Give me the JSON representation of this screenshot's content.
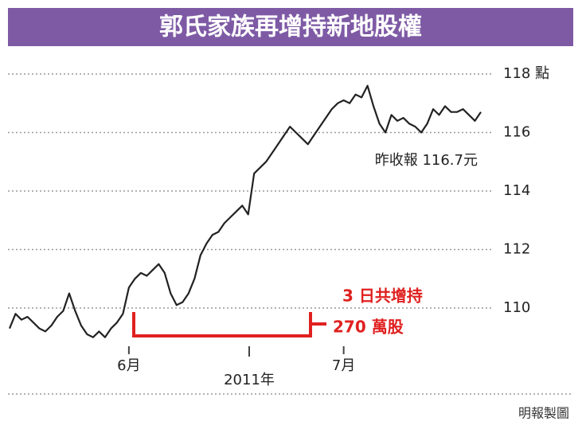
{
  "chart_data": {
    "type": "line",
    "title": "郭氏家族再增持新地股權",
    "categories": [
      null,
      null,
      null,
      null,
      null,
      null,
      null,
      null,
      null,
      null,
      null,
      null,
      null,
      null,
      null,
      null,
      null,
      null,
      null,
      null,
      "6月",
      null,
      null,
      null,
      null,
      null,
      null,
      null,
      null,
      null,
      null,
      null,
      null,
      null,
      null,
      null,
      null,
      null,
      null,
      null,
      null,
      null,
      null,
      null,
      null,
      null,
      null,
      null,
      null,
      null,
      null,
      null,
      null,
      null,
      null,
      null,
      "7月",
      null,
      null,
      null,
      null,
      null,
      null,
      null,
      null,
      null,
      null,
      null,
      null,
      null,
      null,
      null,
      null,
      null,
      null,
      null,
      null,
      null,
      null,
      null
    ],
    "series": [
      {
        "name": null,
        "color": "#222222",
        "values": [
          109.3,
          109.8,
          109.6,
          109.7,
          109.5,
          109.3,
          109.2,
          109.4,
          109.7,
          109.9,
          110.5,
          109.9,
          109.4,
          109.1,
          109.0,
          109.2,
          109.0,
          109.3,
          109.5,
          109.8,
          110.7,
          111.0,
          111.2,
          111.1,
          111.3,
          111.5,
          111.2,
          110.5,
          110.1,
          110.2,
          110.5,
          111.0,
          111.8,
          112.2,
          112.5,
          112.6,
          112.9,
          113.1,
          113.3,
          113.5,
          113.2,
          114.6,
          114.8,
          115.0,
          115.3,
          115.6,
          115.9,
          116.2,
          116.0,
          115.8,
          115.6,
          115.9,
          116.2,
          116.5,
          116.8,
          117.0,
          117.1,
          117.0,
          117.3,
          117.2,
          117.6,
          116.9,
          116.3,
          116.0,
          116.6,
          116.4,
          116.5,
          116.3,
          116.2,
          116.0,
          116.3,
          116.8,
          116.6,
          116.9,
          116.7,
          116.7,
          116.8,
          116.6,
          116.4,
          116.7
        ]
      }
    ],
    "ylim": [
      107,
      118.5
    ],
    "yticks": [
      110,
      112,
      114,
      116,
      {
        "value": 118,
        "label": "118 點"
      }
    ],
    "grid": true,
    "annotations": {
      "close": "昨收報 116.7元",
      "buy1": "3 日共增持",
      "buy2": "270 萬股",
      "year": "2011年",
      "source": "明報製圖"
    }
  }
}
